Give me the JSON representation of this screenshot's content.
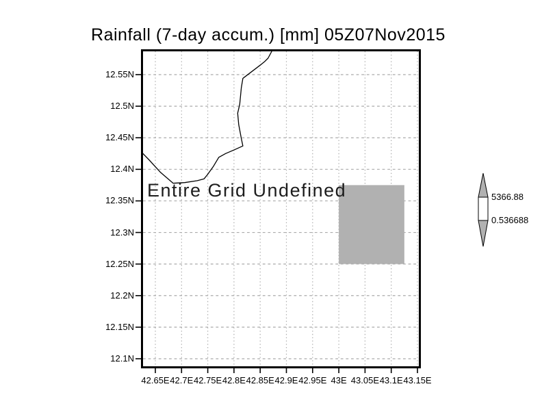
{
  "title": "Rainfall (7-day accum.) [mm] 05Z07Nov2015",
  "map": {
    "status_label": "Entire Grid Undefined"
  },
  "axes": {
    "y_labels": [
      "12.55N",
      "12.5N",
      "12.45N",
      "12.4N",
      "12.35N",
      "12.3N",
      "12.25N",
      "12.2N",
      "12.15N",
      "12.1N"
    ],
    "x_labels": [
      "42.65E",
      "42.7E",
      "42.75E",
      "42.8E",
      "42.85E",
      "42.9E",
      "42.95E",
      "43E",
      "43.05E",
      "43.1E",
      "43.15E"
    ]
  },
  "colorbar": {
    "max_label": "5366.88",
    "min_label": "0.536688"
  },
  "colors": {
    "ink": "#000000",
    "grid_gray": "#aaaaaa",
    "shade_gray": "#b1b1b1",
    "colorbar_body": "#ffffff"
  },
  "chart_data": {
    "type": "map",
    "title": "Rainfall (7-day accum.) [mm] 05Z07Nov2015",
    "variable": "Rainfall (7-day accum.)",
    "units": "mm",
    "valid_time": "05Z07Nov2015",
    "status_annotation": "Entire Grid Undefined",
    "grid": true,
    "x_axis": {
      "direction": "longitude-east",
      "tick_values": [
        42.65,
        42.7,
        42.75,
        42.8,
        42.85,
        42.9,
        42.95,
        43.0,
        43.05,
        43.1,
        43.15
      ],
      "approx_range": [
        42.62,
        43.16
      ]
    },
    "y_axis": {
      "direction": "latitude-north",
      "tick_values": [
        12.55,
        12.5,
        12.45,
        12.4,
        12.35,
        12.3,
        12.25,
        12.2,
        12.15,
        12.1
      ],
      "approx_range": [
        12.09,
        12.59
      ]
    },
    "colorbar": {
      "min": 0.536688,
      "max": 5366.88,
      "orientation": "vertical",
      "position": "right"
    },
    "shaded_cell_lon": [
      43.0,
      43.125
    ],
    "shaded_cell_lat": [
      12.25,
      12.375
    ],
    "coastline_lonlat": [
      [
        42.872,
        12.587
      ],
      [
        42.865,
        12.576
      ],
      [
        42.859,
        12.571
      ],
      [
        42.85,
        12.565
      ],
      [
        42.82,
        12.546
      ],
      [
        42.817,
        12.544
      ],
      [
        42.814,
        12.529
      ],
      [
        42.811,
        12.503
      ],
      [
        42.807,
        12.489
      ],
      [
        42.809,
        12.471
      ],
      [
        42.814,
        12.449
      ],
      [
        42.817,
        12.437
      ],
      [
        42.801,
        12.431
      ],
      [
        42.784,
        12.425
      ],
      [
        42.771,
        12.419
      ],
      [
        42.761,
        12.405
      ],
      [
        42.749,
        12.391
      ],
      [
        42.743,
        12.385
      ],
      [
        42.73,
        12.382
      ],
      [
        42.706,
        12.379
      ],
      [
        42.684,
        12.378
      ],
      [
        42.66,
        12.395
      ],
      [
        42.638,
        12.415
      ],
      [
        42.624,
        12.427
      ]
    ]
  }
}
